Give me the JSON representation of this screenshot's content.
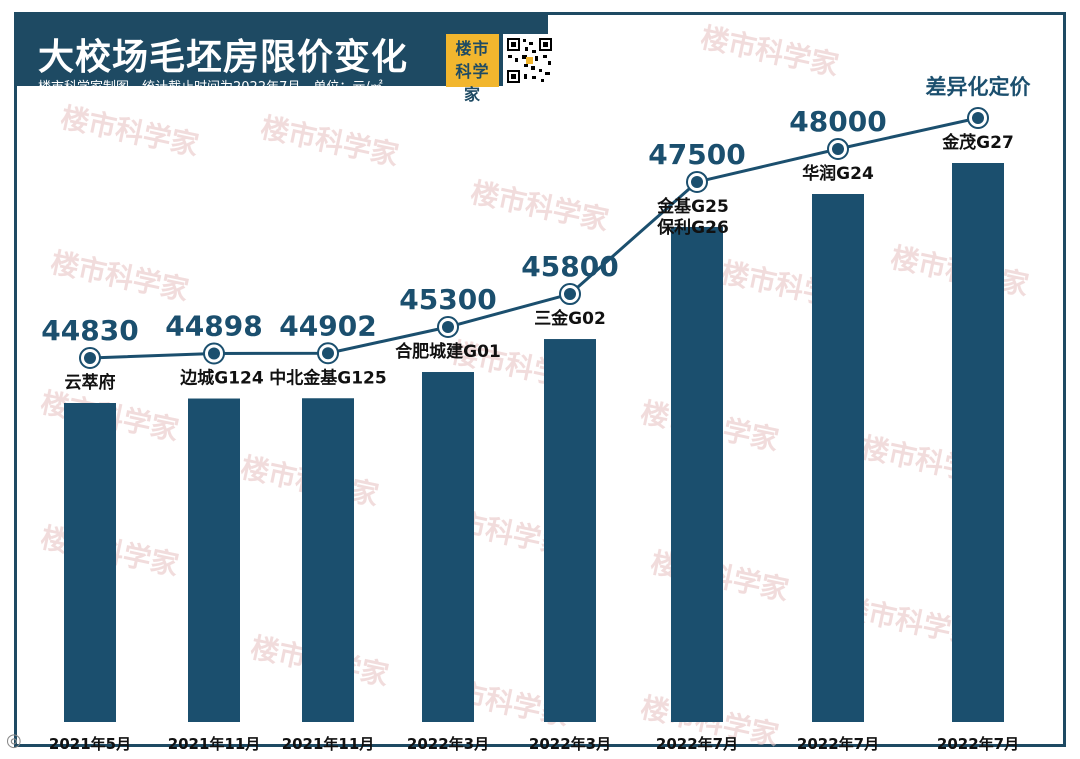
{
  "header": {
    "title": "大校场毛坯房限价变化",
    "subtitle": "楼市科学家制图，统计截止时间为2022年7月，单位：元/㎡",
    "logo_text": "楼市科学家"
  },
  "watermark_text": "楼市科学家",
  "footer_mark": "◎",
  "colors": {
    "bar": "#1b4f6e",
    "line": "#1b4f6e",
    "marker_ring": "#ffffff",
    "label": "#1b4f6e",
    "panel": "#1e4a63",
    "logo": "#f2b62e"
  },
  "chart_data": {
    "type": "bar",
    "title": "大校场毛坯房限价变化",
    "subtitle": "楼市科学家制图，统计截止时间为2022年7月，单位：元/㎡",
    "categories": [
      "2021年5月",
      "2021年11月",
      "2021年11月",
      "2022年3月",
      "2022年3月",
      "2022年7月",
      "2022年7月",
      "2022年7月"
    ],
    "projects": [
      "云萃府",
      "边城G124",
      "中北金基G125",
      "合肥城建G01",
      "三金G02",
      "金基G25\n保利G26",
      "华润G24",
      "金茂G27"
    ],
    "values": [
      44830,
      44898,
      44902,
      45300,
      45800,
      47500,
      48000,
      null
    ],
    "value_labels": [
      "44830",
      "44898",
      "44902",
      "45300",
      "45800",
      "47500",
      "48000",
      "差异化定价"
    ],
    "line_overlay": true,
    "xlabel": "",
    "ylabel": ""
  }
}
